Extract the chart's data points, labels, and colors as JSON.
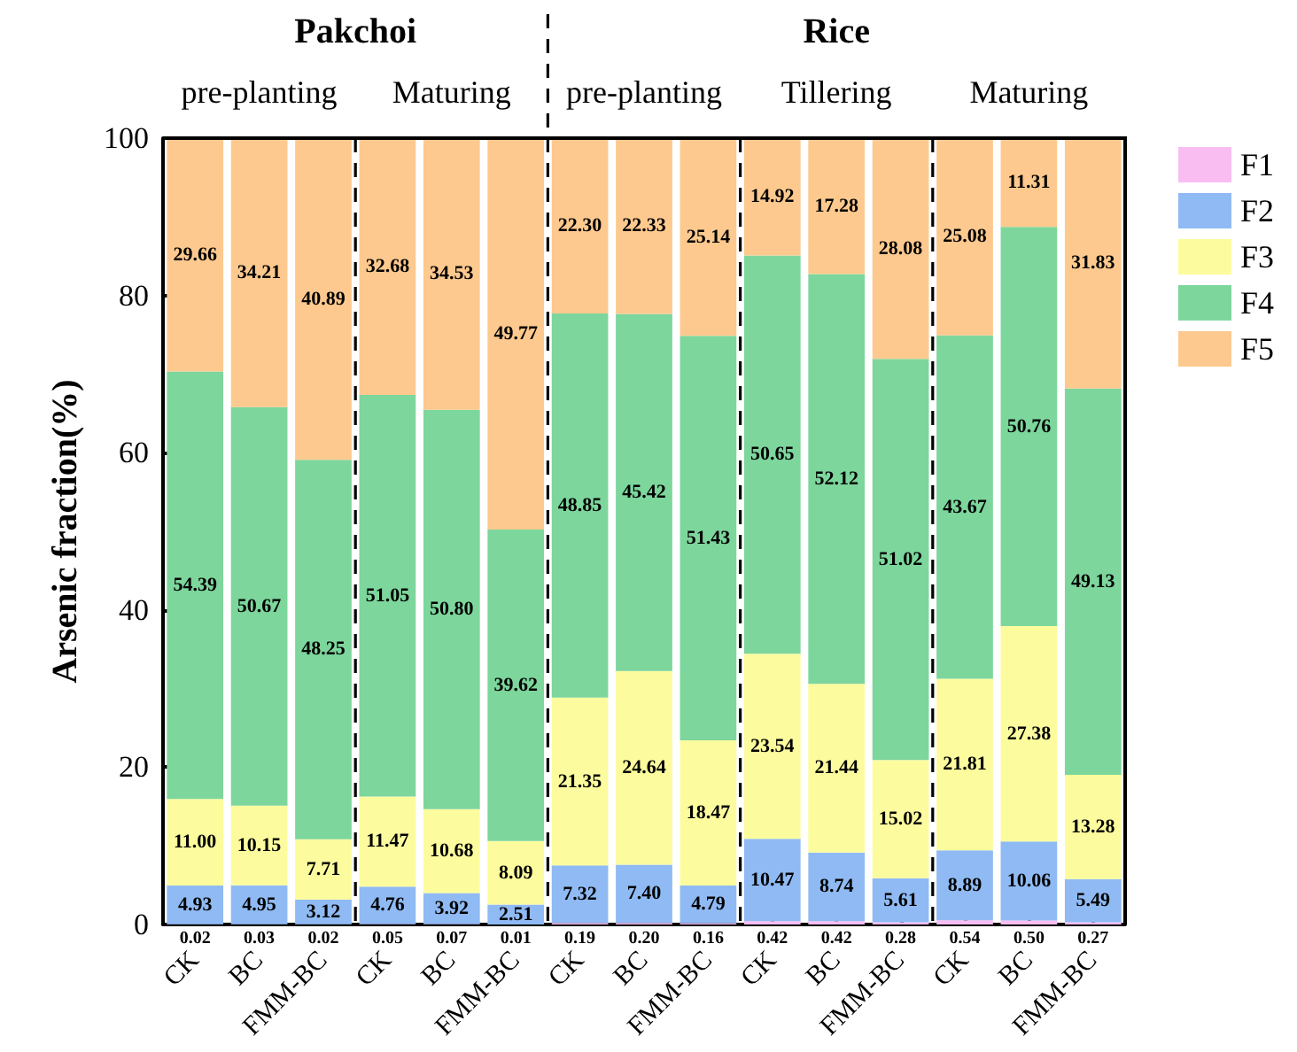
{
  "chart_data": {
    "type": "bar",
    "stacked": true,
    "ylabel": "Arsenic fraction(%)",
    "categories": [
      "CK",
      "BC",
      "FMM-BC",
      "CK",
      "BC",
      "FMM-BC",
      "CK",
      "BC",
      "FMM-BC",
      "CK",
      "BC",
      "FMM-BC",
      "CK",
      "BC",
      "FMM-BC"
    ],
    "annotations": [
      "Pakchoi",
      "Rice",
      "pre-planting",
      "Maturing",
      "pre-planting",
      "Tillering",
      "Maturing"
    ],
    "series": [
      {
        "name": "F1",
        "color": "#f9bdf2",
        "values": [
          0.02,
          0.03,
          0.02,
          0.05,
          0.07,
          0.01,
          0.19,
          0.2,
          0.16,
          0.42,
          0.42,
          0.28,
          0.54,
          0.5,
          0.27
        ],
        "value_labels": [
          "0.02",
          "0.03",
          "0.02",
          "0.05",
          "0.07",
          "0.01",
          "0.19",
          "0.20",
          "0.16",
          "0.42",
          "0.42",
          "0.28",
          "0.54",
          "0.50",
          "0.27"
        ]
      },
      {
        "name": "F2",
        "color": "#8fbaf3",
        "values": [
          4.93,
          4.95,
          3.12,
          4.76,
          3.92,
          2.51,
          7.32,
          7.4,
          4.79,
          10.47,
          8.74,
          5.61,
          8.89,
          10.06,
          5.49
        ],
        "value_labels": [
          "4.93",
          "4.95",
          "3.12",
          "4.76",
          "3.92",
          "2.51",
          "7.32",
          "7.40",
          "4.79",
          "10.47",
          "8.74",
          "5.61",
          "8.89",
          "10.06",
          "5.49"
        ]
      },
      {
        "name": "F3",
        "color": "#fcfc9e",
        "values": [
          11.0,
          10.15,
          7.71,
          11.47,
          10.68,
          8.09,
          21.35,
          24.64,
          18.47,
          23.54,
          21.44,
          15.02,
          21.81,
          27.38,
          13.28
        ],
        "value_labels": [
          "11.00",
          "10.15",
          "7.71",
          "11.47",
          "10.68",
          "8.09",
          "21.35",
          "24.64",
          "18.47",
          "23.54",
          "21.44",
          "15.02",
          "21.81",
          "27.38",
          "13.28"
        ]
      },
      {
        "name": "F4",
        "color": "#7dd69c",
        "values": [
          54.39,
          50.67,
          48.25,
          51.05,
          50.8,
          39.62,
          48.85,
          45.42,
          51.43,
          50.65,
          52.12,
          51.02,
          43.67,
          50.76,
          49.13
        ],
        "value_labels": [
          "54.39",
          "50.67",
          "48.25",
          "51.05",
          "50.80",
          "39.62",
          "48.85",
          "45.42",
          "51.43",
          "50.65",
          "52.12",
          "51.02",
          "43.67",
          "50.76",
          "49.13"
        ]
      },
      {
        "name": "F5",
        "color": "#fdc98e",
        "values": [
          29.66,
          34.21,
          40.89,
          32.68,
          34.53,
          49.77,
          22.3,
          22.33,
          25.14,
          14.92,
          17.28,
          28.08,
          25.08,
          11.31,
          31.83
        ],
        "value_labels": [
          "29.66",
          "34.21",
          "40.89",
          "32.68",
          "34.53",
          "49.77",
          "22.30",
          "22.33",
          "25.14",
          "14.92",
          "17.28",
          "28.08",
          "25.08",
          "11.31",
          "31.83"
        ]
      }
    ],
    "ylim": [
      0,
      100
    ],
    "yticks": [
      0,
      20,
      40,
      60,
      80,
      100
    ],
    "grid": false,
    "legend": "right"
  }
}
